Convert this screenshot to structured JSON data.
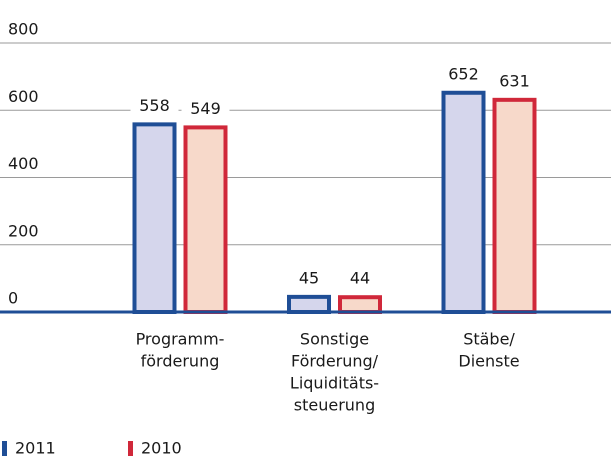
{
  "chart_data": {
    "type": "bar",
    "categories": [
      [
        "Programm-",
        "förderung"
      ],
      [
        "Sonstige",
        "Förderung/",
        "Liquiditäts-",
        "steuerung"
      ],
      [
        "Stäbe/",
        "Dienste"
      ]
    ],
    "series": [
      {
        "name": "2011",
        "color": "#1f4e96",
        "fill": "#d5d6ec",
        "values": [
          558,
          45,
          652
        ]
      },
      {
        "name": "2010",
        "color": "#d0283a",
        "fill": "#f7d9ca",
        "values": [
          549,
          44,
          631
        ]
      }
    ],
    "ylim": [
      0,
      800
    ],
    "yticks": [
      0,
      200,
      400,
      600,
      800
    ],
    "grid": true
  }
}
